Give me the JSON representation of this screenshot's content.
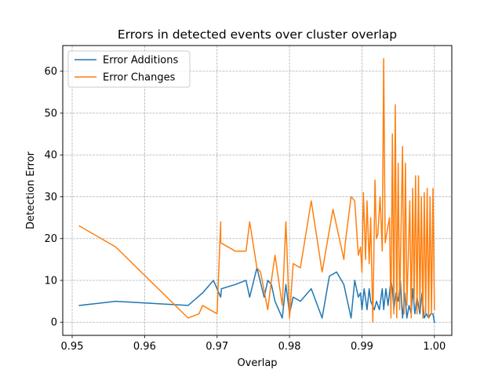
{
  "chart_data": {
    "type": "line",
    "title": "Errors in detected events over cluster overlap",
    "xlabel": "Overlap",
    "ylabel": "Detection Error",
    "xlim": [
      0.9487,
      1.0024
    ],
    "ylim": [
      -3.15,
      66.15
    ],
    "x_ticks": [
      0.95,
      0.96,
      0.97,
      0.98,
      0.99,
      1.0
    ],
    "x_tick_labels": [
      "0.95",
      "0.96",
      "0.97",
      "0.98",
      "0.99",
      "1.00"
    ],
    "y_ticks": [
      0,
      10,
      20,
      30,
      40,
      50,
      60
    ],
    "y_tick_labels": [
      "0",
      "10",
      "20",
      "30",
      "40",
      "50",
      "60"
    ],
    "grid": true,
    "legend_position": "upper-left",
    "series": [
      {
        "name": "Error Additions",
        "color": "#1f77b4",
        "x": [
          0.951,
          0.956,
          0.966,
          0.968,
          0.9695,
          0.9705,
          0.9706,
          0.9725,
          0.974,
          0.9745,
          0.9755,
          0.9765,
          0.977,
          0.9775,
          0.978,
          0.979,
          0.9795,
          0.98,
          0.9805,
          0.9815,
          0.983,
          0.9845,
          0.9855,
          0.9865,
          0.9875,
          0.9885,
          0.989,
          0.9895,
          0.9898,
          0.99,
          0.9903,
          0.9907,
          0.991,
          0.9912,
          0.9917,
          0.992,
          0.9924,
          0.9928,
          0.993,
          0.9933,
          0.9936,
          0.994,
          0.9942,
          0.9944,
          0.9947,
          0.995,
          0.9953,
          0.9956,
          0.9959,
          0.9962,
          0.9965,
          0.9968,
          0.997,
          0.9973,
          0.9976,
          0.998,
          0.9983,
          0.9986,
          0.9989,
          0.9992,
          0.9995,
          0.9998,
          1.0
        ],
        "values": [
          4,
          5,
          4,
          7,
          10,
          6,
          8,
          9,
          10,
          6,
          13,
          6,
          10,
          9,
          5,
          1,
          9,
          2,
          6,
          5,
          8,
          1,
          11,
          12,
          9,
          1,
          10,
          6,
          7,
          3,
          8,
          3,
          8,
          5,
          3,
          5,
          3,
          8,
          3,
          8,
          4,
          10,
          8,
          3,
          7,
          5,
          10,
          1,
          7,
          1,
          4,
          2,
          8,
          2,
          6,
          2,
          7,
          1,
          2,
          1,
          2,
          2,
          0
        ]
      },
      {
        "name": "Error Changes",
        "color": "#ff7f0e",
        "x": [
          0.951,
          0.956,
          0.966,
          0.9675,
          0.968,
          0.97,
          0.9705,
          0.9705,
          0.9725,
          0.974,
          0.9745,
          0.9755,
          0.976,
          0.977,
          0.9775,
          0.978,
          0.979,
          0.9795,
          0.98,
          0.9805,
          0.9815,
          0.983,
          0.9845,
          0.986,
          0.9875,
          0.9877,
          0.9885,
          0.989,
          0.9895,
          0.9898,
          0.99,
          0.9902,
          0.9905,
          0.9907,
          0.991,
          0.9912,
          0.9915,
          0.9918,
          0.992,
          0.9922,
          0.9925,
          0.9928,
          0.993,
          0.9932,
          0.9935,
          0.9938,
          0.994,
          0.9942,
          0.9944,
          0.9946,
          0.9948,
          0.995,
          0.9952,
          0.9954,
          0.9956,
          0.9958,
          0.996,
          0.9962,
          0.9964,
          0.9966,
          0.9968,
          0.997,
          0.9972,
          0.9974,
          0.9976,
          0.9978,
          0.998,
          0.9982,
          0.9984,
          0.9986,
          0.9988,
          0.999,
          0.9992,
          0.9994,
          0.9996,
          0.9998,
          1.0
        ],
        "values": [
          23,
          18,
          1,
          2,
          4,
          2,
          24,
          19,
          17,
          17,
          24,
          13,
          12,
          3,
          10,
          16,
          4,
          24,
          1,
          14,
          13,
          29,
          12,
          27,
          15,
          19,
          30,
          29,
          16,
          18,
          12,
          31,
          15,
          29,
          14,
          25,
          0,
          34,
          20,
          21,
          30,
          17,
          63,
          19,
          22,
          25,
          1,
          45,
          2,
          52,
          1,
          38,
          3,
          23,
          42,
          2,
          38,
          4,
          16,
          29,
          1,
          32,
          5,
          35,
          2,
          35,
          3,
          30,
          1,
          31,
          2,
          32,
          1,
          30,
          2,
          32,
          3
        ]
      }
    ]
  }
}
